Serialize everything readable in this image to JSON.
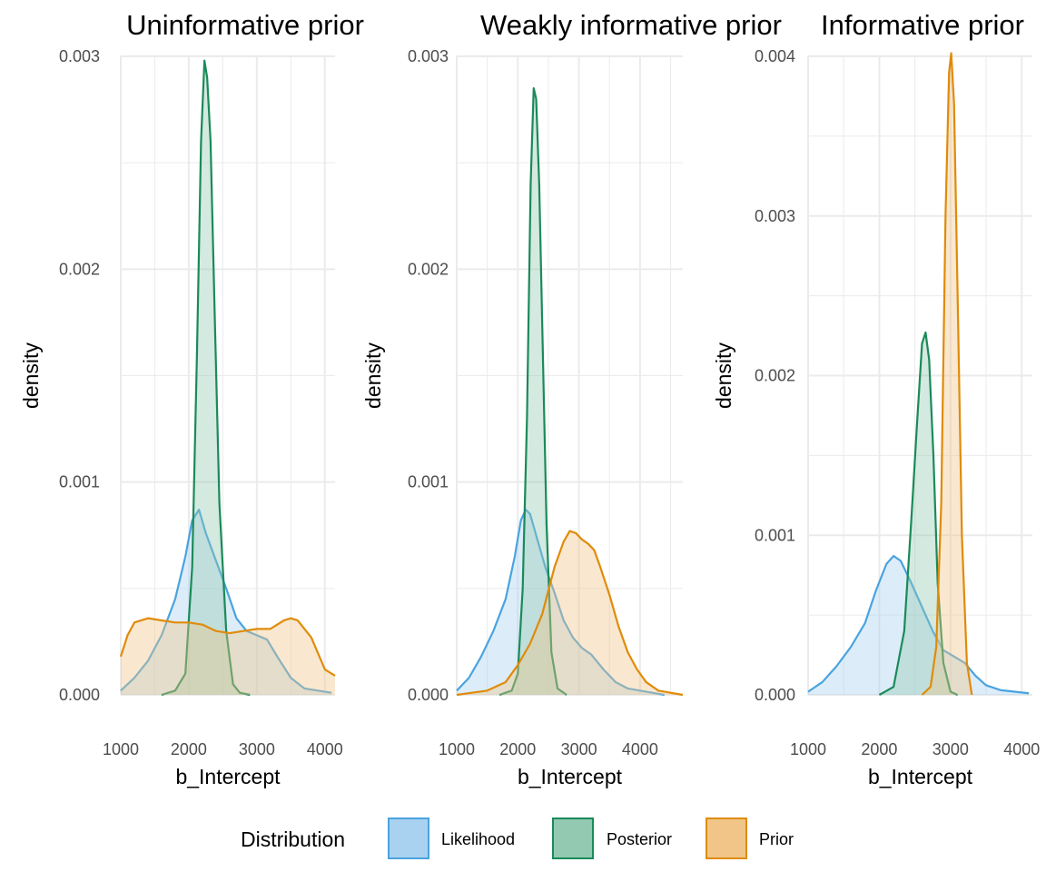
{
  "legend": {
    "title": "Distribution",
    "entries": [
      {
        "label": "Likelihood",
        "color": "#4aa3df",
        "fill": "#a8d2f0"
      },
      {
        "label": "Posterior",
        "color": "#1b8a5a",
        "fill": "#93c9b1"
      },
      {
        "label": "Prior",
        "color": "#e08b0a",
        "fill": "#f0c587"
      }
    ]
  },
  "chart_data": [
    {
      "type": "area",
      "title": "Uninformative prior",
      "xlabel": "b_Intercept",
      "ylabel": "density",
      "xlim": [
        1000,
        4150
      ],
      "ylim": [
        0,
        0.003
      ],
      "xticks": [
        "1000",
        "2000",
        "3000",
        "4000"
      ],
      "yticks": [
        "0.000",
        "0.001",
        "0.002",
        "0.003"
      ],
      "grid": true,
      "series": [
        {
          "name": "Likelihood",
          "x": [
            1000,
            1200,
            1400,
            1600,
            1800,
            1950,
            2050,
            2150,
            2250,
            2400,
            2550,
            2700,
            2850,
            3000,
            3150,
            3300,
            3500,
            3700,
            3900,
            4100
          ],
          "y": [
            2e-05,
            8e-05,
            0.00016,
            0.00028,
            0.00045,
            0.00065,
            0.00082,
            0.00087,
            0.00076,
            0.00063,
            0.0005,
            0.00036,
            0.0003,
            0.00028,
            0.00026,
            0.00018,
            8e-05,
            3e-05,
            2e-05,
            1e-05
          ]
        },
        {
          "name": "Posterior",
          "x": [
            1600,
            1800,
            1950,
            2050,
            2120,
            2180,
            2230,
            2270,
            2320,
            2380,
            2450,
            2550,
            2650,
            2750,
            2900
          ],
          "y": [
            0,
            2e-05,
            0.0001,
            0.0006,
            0.0016,
            0.0026,
            0.00298,
            0.0029,
            0.0026,
            0.0018,
            0.0009,
            0.0003,
            5e-05,
            1e-05,
            0
          ]
        },
        {
          "name": "Prior",
          "x": [
            1000,
            1100,
            1200,
            1400,
            1600,
            1800,
            2000,
            2200,
            2400,
            2600,
            2800,
            3000,
            3200,
            3400,
            3500,
            3600,
            3800,
            4000,
            4150
          ],
          "y": [
            0.00018,
            0.00028,
            0.00034,
            0.00036,
            0.00035,
            0.00034,
            0.00034,
            0.00033,
            0.0003,
            0.00029,
            0.0003,
            0.00031,
            0.00031,
            0.00035,
            0.00036,
            0.00035,
            0.00027,
            0.00012,
            9e-05
          ]
        }
      ]
    },
    {
      "type": "area",
      "title": "Weakly informative prior",
      "xlabel": "b_Intercept",
      "ylabel": "density",
      "xlim": [
        1000,
        4700
      ],
      "ylim": [
        0,
        0.003
      ],
      "xticks": [
        "1000",
        "2000",
        "3000",
        "4000"
      ],
      "yticks": [
        "0.000",
        "0.001",
        "0.002",
        "0.003"
      ],
      "grid": true,
      "series": [
        {
          "name": "Likelihood",
          "x": [
            1000,
            1200,
            1400,
            1600,
            1800,
            1950,
            2050,
            2130,
            2200,
            2300,
            2450,
            2600,
            2750,
            2900,
            3050,
            3200,
            3400,
            3600,
            3800,
            4000,
            4200,
            4400
          ],
          "y": [
            2e-05,
            8e-05,
            0.00018,
            0.0003,
            0.00045,
            0.00065,
            0.00082,
            0.00087,
            0.00085,
            0.00075,
            0.0006,
            0.00048,
            0.00035,
            0.00027,
            0.00022,
            0.00019,
            0.00012,
            6e-05,
            3e-05,
            2e-05,
            1e-05,
            0
          ]
        },
        {
          "name": "Posterior",
          "x": [
            1700,
            1900,
            2000,
            2080,
            2150,
            2210,
            2260,
            2300,
            2350,
            2410,
            2470,
            2550,
            2650,
            2800
          ],
          "y": [
            0,
            2e-05,
            0.0001,
            0.0005,
            0.0013,
            0.0024,
            0.00285,
            0.0028,
            0.0024,
            0.0016,
            0.0008,
            0.0002,
            3e-05,
            0
          ]
        },
        {
          "name": "Prior",
          "x": [
            1000,
            1500,
            1800,
            2000,
            2200,
            2400,
            2600,
            2750,
            2850,
            2950,
            3050,
            3150,
            3250,
            3350,
            3500,
            3650,
            3800,
            3950,
            4100,
            4300,
            4500,
            4700
          ],
          "y": [
            0,
            2e-05,
            6e-05,
            0.00014,
            0.00024,
            0.00038,
            0.0006,
            0.00072,
            0.00077,
            0.00076,
            0.00073,
            0.00071,
            0.00068,
            0.0006,
            0.00047,
            0.00032,
            0.0002,
            0.00012,
            6e-05,
            2e-05,
            1e-05,
            0
          ]
        }
      ]
    },
    {
      "type": "area",
      "title": "Informative prior",
      "xlabel": "b_Intercept",
      "ylabel": "density",
      "xlim": [
        1000,
        4150
      ],
      "ylim": [
        0,
        0.004
      ],
      "xticks": [
        "1000",
        "2000",
        "3000",
        "4000"
      ],
      "yticks": [
        "0.000",
        "0.001",
        "0.002",
        "0.003",
        "0.004"
      ],
      "grid": true,
      "series": [
        {
          "name": "Likelihood",
          "x": [
            1000,
            1200,
            1400,
            1600,
            1800,
            1950,
            2100,
            2200,
            2300,
            2450,
            2600,
            2750,
            2900,
            3050,
            3200,
            3350,
            3500,
            3700,
            3900,
            4100
          ],
          "y": [
            2e-05,
            8e-05,
            0.00018,
            0.0003,
            0.00045,
            0.00065,
            0.00082,
            0.00087,
            0.00084,
            0.0007,
            0.00055,
            0.0004,
            0.00028,
            0.00024,
            0.0002,
            0.00012,
            6e-05,
            3e-05,
            2e-05,
            1e-05
          ]
        },
        {
          "name": "Posterior",
          "x": [
            2000,
            2200,
            2350,
            2450,
            2530,
            2600,
            2650,
            2700,
            2760,
            2820,
            2900,
            3000,
            3100
          ],
          "y": [
            0,
            5e-05,
            0.0004,
            0.0011,
            0.0017,
            0.0022,
            0.00227,
            0.0021,
            0.0015,
            0.0007,
            0.0002,
            2e-05,
            0
          ]
        },
        {
          "name": "Prior",
          "x": [
            2600,
            2720,
            2800,
            2870,
            2930,
            2980,
            3010,
            3050,
            3100,
            3160,
            3230,
            3300
          ],
          "y": [
            0,
            5e-05,
            0.0003,
            0.0012,
            0.003,
            0.0039,
            0.00402,
            0.0037,
            0.0025,
            0.001,
            0.0002,
            0
          ]
        }
      ]
    }
  ]
}
